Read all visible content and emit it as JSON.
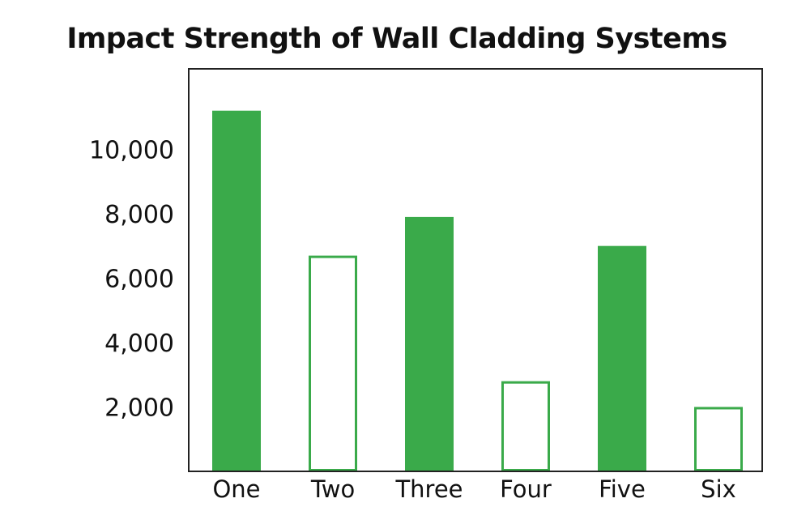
{
  "colors": {
    "accent": "#3aaa4a",
    "frame": "#222222",
    "text": "#111111",
    "background": "#ffffff"
  },
  "chart_data": {
    "type": "bar",
    "title": "Impact Strength of Wall Cladding Systems",
    "xlabel": "",
    "ylabel": "",
    "categories": [
      "One",
      "Two",
      "Three",
      "Four",
      "Five",
      "Six"
    ],
    "values": [
      11200,
      6700,
      7900,
      2800,
      7000,
      2000
    ],
    "bar_styles": [
      "filled",
      "outline",
      "filled",
      "outline",
      "filled",
      "outline"
    ],
    "yticks": [
      2000,
      4000,
      6000,
      8000,
      10000
    ],
    "ytick_labels": [
      "2,000",
      "4,000",
      "6,000",
      "8,000",
      "10,000"
    ],
    "ylim": [
      0,
      12500
    ],
    "grid": false,
    "legend": "none"
  }
}
